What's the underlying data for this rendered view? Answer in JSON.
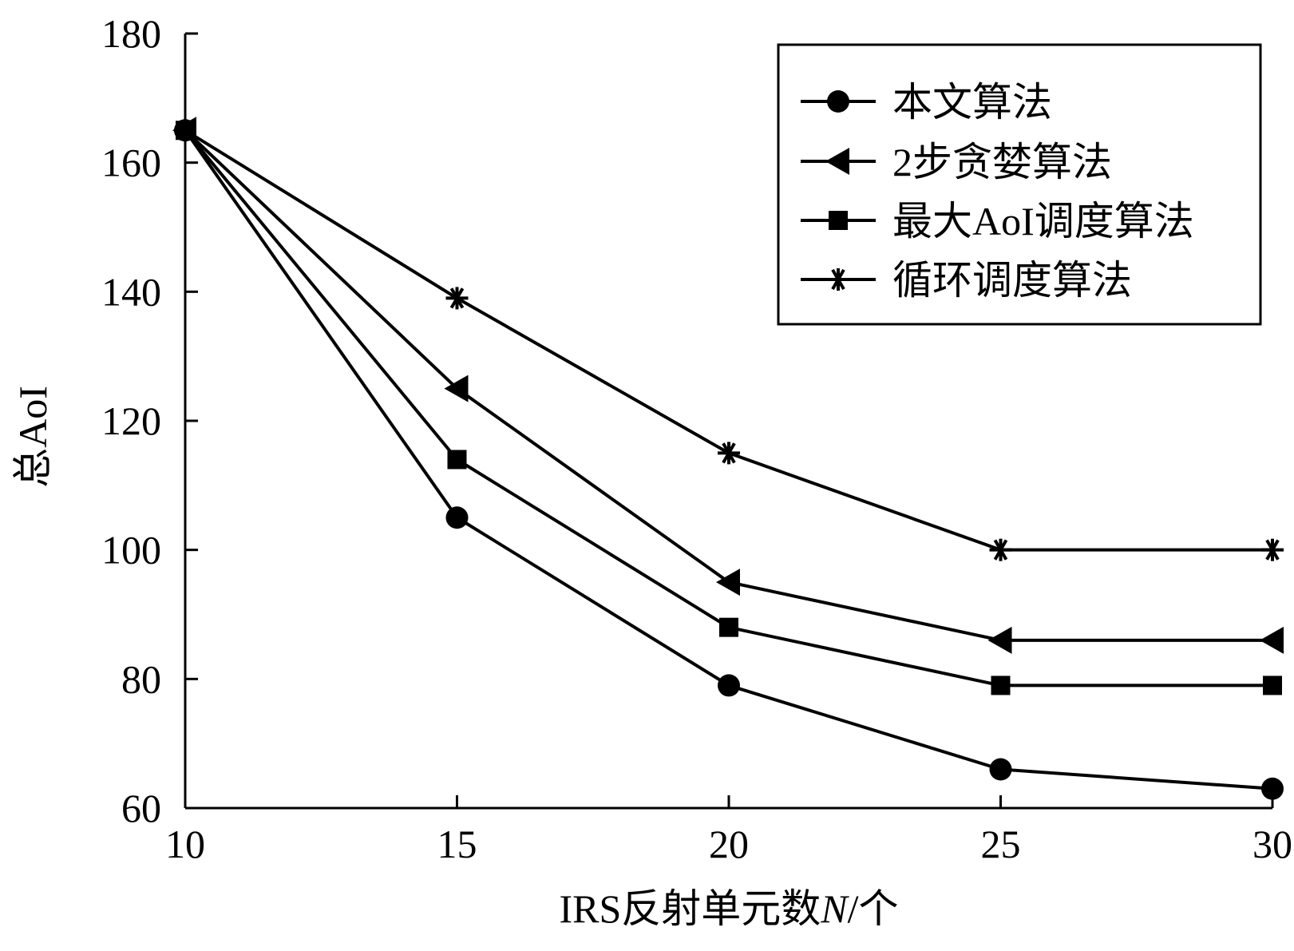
{
  "chart_data": {
    "type": "line",
    "title": "",
    "xlabel_prefix": "IRS反射单元数",
    "xlabel_var": "N",
    "xlabel_suffix": "/个",
    "ylabel": "总AoI",
    "x": [
      10,
      15,
      20,
      25,
      30
    ],
    "xlim": [
      10,
      30
    ],
    "ylim": [
      60,
      180
    ],
    "xticks": [
      "10",
      "15",
      "20",
      "25",
      "30"
    ],
    "yticks": [
      "60",
      "80",
      "100",
      "120",
      "140",
      "160",
      "180"
    ],
    "grid": false,
    "legend_position": "top-right",
    "series": [
      {
        "name": "本文算法",
        "marker": "circle",
        "color": "#000000",
        "values": [
          165,
          105,
          79,
          66,
          63
        ]
      },
      {
        "name": "2步贪婪算法",
        "marker": "triangle-left",
        "color": "#000000",
        "values": [
          165,
          125,
          95,
          86,
          86
        ]
      },
      {
        "name": "最大AoI调度算法",
        "marker": "square",
        "color": "#000000",
        "values": [
          165,
          114,
          88,
          79,
          79
        ]
      },
      {
        "name": "循环调度算法",
        "marker": "asterisk",
        "color": "#000000",
        "values": [
          165,
          139,
          115,
          100,
          100
        ]
      }
    ]
  }
}
